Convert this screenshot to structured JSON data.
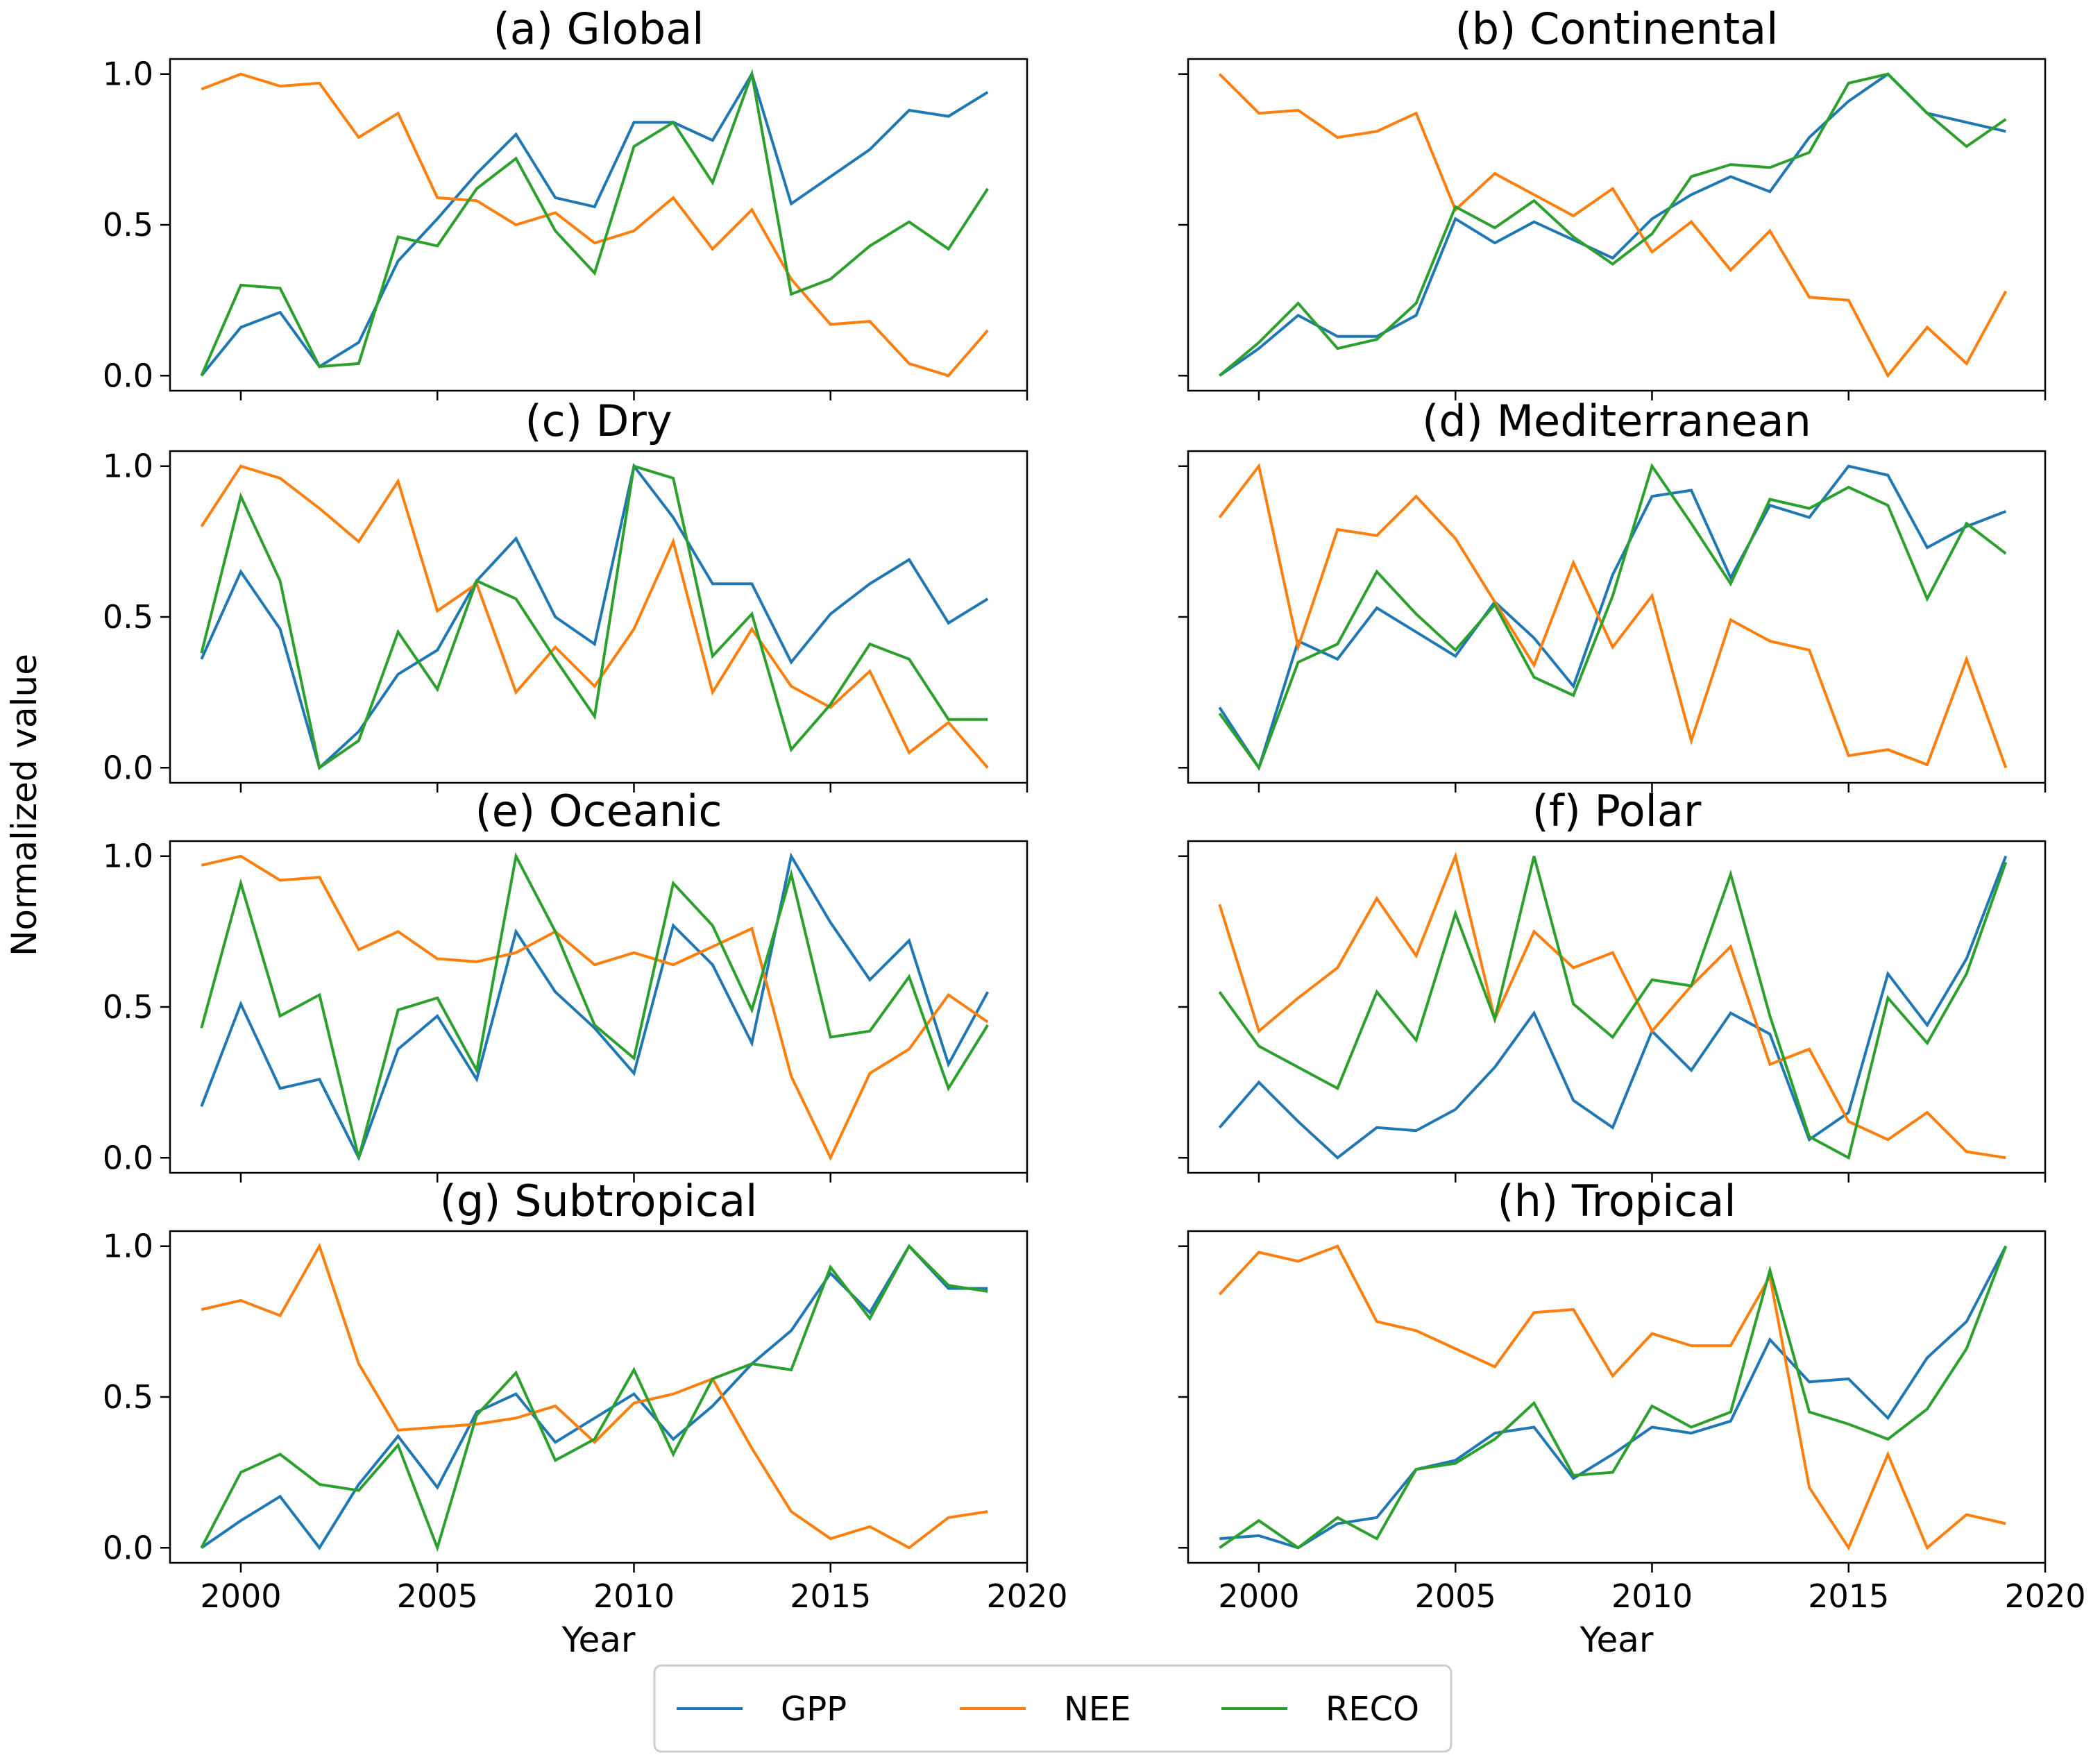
{
  "figure": {
    "ylabel": "Normalized value",
    "xlabel": "Year",
    "xticks": [
      2000,
      2005,
      2010,
      2015,
      2020
    ],
    "yticks": [
      "0.0",
      "0.5",
      "1.0"
    ],
    "xlim": [
      1998.2,
      2020.0
    ],
    "ylim": [
      -0.05,
      1.05
    ]
  },
  "colors": {
    "GPP": "#1f77b4",
    "NEE": "#ff7f0e",
    "RECO": "#2ca02c"
  },
  "legend": [
    {
      "name": "GPP",
      "label": "GPP"
    },
    {
      "name": "NEE",
      "label": "NEE"
    },
    {
      "name": "RECO",
      "label": "RECO"
    }
  ],
  "chart_data": [
    {
      "type": "line",
      "title": "(a) Global",
      "x": [
        1999,
        2000,
        2001,
        2002,
        2003,
        2004,
        2005,
        2006,
        2007,
        2008,
        2009,
        2010,
        2011,
        2012,
        2013,
        2014,
        2015,
        2016,
        2017,
        2018,
        2019
      ],
      "series": [
        {
          "name": "GPP",
          "values": [
            0.0,
            0.16,
            0.21,
            0.03,
            0.11,
            0.38,
            0.52,
            0.67,
            0.8,
            0.59,
            0.56,
            0.84,
            0.84,
            0.78,
            1.0,
            0.57,
            0.66,
            0.75,
            0.88,
            0.86,
            0.94
          ]
        },
        {
          "name": "NEE",
          "values": [
            0.95,
            1.0,
            0.96,
            0.97,
            0.79,
            0.87,
            0.59,
            0.58,
            0.5,
            0.54,
            0.44,
            0.48,
            0.59,
            0.42,
            0.55,
            0.32,
            0.17,
            0.18,
            0.04,
            0.0,
            0.15
          ]
        },
        {
          "name": "RECO",
          "values": [
            0.0,
            0.3,
            0.29,
            0.03,
            0.04,
            0.46,
            0.43,
            0.62,
            0.72,
            0.48,
            0.34,
            0.76,
            0.84,
            0.64,
            1.0,
            0.27,
            0.32,
            0.43,
            0.51,
            0.42,
            0.62
          ]
        }
      ]
    },
    {
      "type": "line",
      "title": "(b) Continental",
      "x": [
        1999,
        2000,
        2001,
        2002,
        2003,
        2004,
        2005,
        2006,
        2007,
        2008,
        2009,
        2010,
        2011,
        2012,
        2013,
        2014,
        2015,
        2016,
        2017,
        2018,
        2019
      ],
      "series": [
        {
          "name": "GPP",
          "values": [
            0.0,
            0.09,
            0.2,
            0.13,
            0.13,
            0.2,
            0.52,
            0.44,
            0.51,
            0.45,
            0.39,
            0.52,
            0.6,
            0.66,
            0.61,
            0.79,
            0.91,
            1.0,
            0.87,
            0.84,
            0.81
          ]
        },
        {
          "name": "NEE",
          "values": [
            1.0,
            0.87,
            0.88,
            0.79,
            0.81,
            0.87,
            0.55,
            0.67,
            0.6,
            0.53,
            0.62,
            0.41,
            0.51,
            0.35,
            0.48,
            0.26,
            0.25,
            0.0,
            0.16,
            0.04,
            0.28
          ]
        },
        {
          "name": "RECO",
          "values": [
            0.0,
            0.11,
            0.24,
            0.09,
            0.12,
            0.24,
            0.56,
            0.49,
            0.58,
            0.46,
            0.37,
            0.47,
            0.66,
            0.7,
            0.69,
            0.74,
            0.97,
            1.0,
            0.87,
            0.76,
            0.85
          ]
        }
      ]
    },
    {
      "type": "line",
      "title": "(c) Dry",
      "x": [
        1999,
        2000,
        2001,
        2002,
        2003,
        2004,
        2005,
        2006,
        2007,
        2008,
        2009,
        2010,
        2011,
        2012,
        2013,
        2014,
        2015,
        2016,
        2017,
        2018,
        2019
      ],
      "series": [
        {
          "name": "GPP",
          "values": [
            0.36,
            0.65,
            0.46,
            0.0,
            0.12,
            0.31,
            0.39,
            0.62,
            0.76,
            0.5,
            0.41,
            1.0,
            0.83,
            0.61,
            0.61,
            0.35,
            0.51,
            0.61,
            0.69,
            0.48,
            0.56
          ]
        },
        {
          "name": "NEE",
          "values": [
            0.8,
            1.0,
            0.96,
            0.86,
            0.75,
            0.95,
            0.52,
            0.61,
            0.25,
            0.4,
            0.27,
            0.46,
            0.75,
            0.25,
            0.46,
            0.27,
            0.2,
            0.32,
            0.05,
            0.15,
            0.0
          ]
        },
        {
          "name": "RECO",
          "values": [
            0.38,
            0.9,
            0.62,
            0.0,
            0.09,
            0.45,
            0.26,
            0.62,
            0.56,
            0.36,
            0.17,
            1.0,
            0.96,
            0.37,
            0.51,
            0.06,
            0.21,
            0.41,
            0.36,
            0.16,
            0.16
          ]
        }
      ]
    },
    {
      "type": "line",
      "title": "(d) Mediterranean",
      "x": [
        1999,
        2000,
        2001,
        2002,
        2003,
        2004,
        2005,
        2006,
        2007,
        2008,
        2009,
        2010,
        2011,
        2012,
        2013,
        2014,
        2015,
        2016,
        2017,
        2018,
        2019
      ],
      "series": [
        {
          "name": "GPP",
          "values": [
            0.2,
            0.0,
            0.42,
            0.36,
            0.53,
            0.45,
            0.37,
            0.55,
            0.43,
            0.27,
            0.64,
            0.9,
            0.92,
            0.63,
            0.87,
            0.83,
            1.0,
            0.97,
            0.73,
            0.8,
            0.85
          ]
        },
        {
          "name": "NEE",
          "values": [
            0.83,
            1.0,
            0.4,
            0.79,
            0.77,
            0.9,
            0.76,
            0.55,
            0.34,
            0.68,
            0.4,
            0.57,
            0.09,
            0.49,
            0.42,
            0.39,
            0.04,
            0.06,
            0.01,
            0.36,
            0.0
          ]
        },
        {
          "name": "RECO",
          "values": [
            0.18,
            0.0,
            0.35,
            0.41,
            0.65,
            0.51,
            0.39,
            0.54,
            0.3,
            0.24,
            0.57,
            1.0,
            0.81,
            0.61,
            0.89,
            0.86,
            0.93,
            0.87,
            0.56,
            0.81,
            0.71
          ]
        }
      ]
    },
    {
      "type": "line",
      "title": "(e) Oceanic",
      "x": [
        1999,
        2000,
        2001,
        2002,
        2003,
        2004,
        2005,
        2006,
        2007,
        2008,
        2009,
        2010,
        2011,
        2012,
        2013,
        2014,
        2015,
        2016,
        2017,
        2018,
        2019
      ],
      "series": [
        {
          "name": "GPP",
          "values": [
            0.17,
            0.51,
            0.23,
            0.26,
            0.0,
            0.36,
            0.47,
            0.26,
            0.75,
            0.55,
            0.43,
            0.28,
            0.77,
            0.64,
            0.38,
            1.0,
            0.78,
            0.59,
            0.72,
            0.31,
            0.55
          ]
        },
        {
          "name": "NEE",
          "values": [
            0.97,
            1.0,
            0.92,
            0.93,
            0.69,
            0.75,
            0.66,
            0.65,
            0.68,
            0.75,
            0.64,
            0.68,
            0.64,
            0.7,
            0.76,
            0.27,
            0.0,
            0.28,
            0.36,
            0.54,
            0.45
          ]
        },
        {
          "name": "RECO",
          "values": [
            0.43,
            0.91,
            0.47,
            0.54,
            0.0,
            0.49,
            0.53,
            0.29,
            1.0,
            0.75,
            0.44,
            0.33,
            0.91,
            0.77,
            0.49,
            0.94,
            0.4,
            0.42,
            0.6,
            0.23,
            0.44
          ]
        }
      ]
    },
    {
      "type": "line",
      "title": "(f) Polar",
      "x": [
        1999,
        2000,
        2001,
        2002,
        2003,
        2004,
        2005,
        2006,
        2007,
        2008,
        2009,
        2010,
        2011,
        2012,
        2013,
        2014,
        2015,
        2016,
        2017,
        2018,
        2019
      ],
      "series": [
        {
          "name": "GPP",
          "values": [
            0.1,
            0.25,
            0.12,
            0.0,
            0.1,
            0.09,
            0.16,
            0.3,
            0.48,
            0.19,
            0.1,
            0.42,
            0.29,
            0.48,
            0.41,
            0.06,
            0.15,
            0.61,
            0.44,
            0.66,
            1.0
          ]
        },
        {
          "name": "NEE",
          "values": [
            0.84,
            0.42,
            0.53,
            0.63,
            0.86,
            0.67,
            1.0,
            0.46,
            0.75,
            0.63,
            0.68,
            0.42,
            0.57,
            0.7,
            0.31,
            0.36,
            0.12,
            0.06,
            0.15,
            0.02,
            0.0
          ]
        },
        {
          "name": "RECO",
          "values": [
            0.55,
            0.37,
            0.3,
            0.23,
            0.55,
            0.39,
            0.81,
            0.46,
            1.0,
            0.51,
            0.4,
            0.59,
            0.57,
            0.94,
            0.47,
            0.07,
            0.0,
            0.53,
            0.38,
            0.61,
            0.98
          ]
        }
      ]
    },
    {
      "type": "line",
      "title": "(g) Subtropical",
      "x": [
        1999,
        2000,
        2001,
        2002,
        2003,
        2004,
        2005,
        2006,
        2007,
        2008,
        2009,
        2010,
        2011,
        2012,
        2013,
        2014,
        2015,
        2016,
        2017,
        2018,
        2019
      ],
      "series": [
        {
          "name": "GPP",
          "values": [
            0.0,
            0.09,
            0.17,
            0.0,
            0.21,
            0.37,
            0.2,
            0.45,
            0.51,
            0.35,
            0.43,
            0.51,
            0.36,
            0.47,
            0.61,
            0.72,
            0.91,
            0.78,
            1.0,
            0.86,
            0.86
          ]
        },
        {
          "name": "NEE",
          "values": [
            0.79,
            0.82,
            0.77,
            1.0,
            0.61,
            0.39,
            0.4,
            0.41,
            0.43,
            0.47,
            0.35,
            0.48,
            0.51,
            0.56,
            0.33,
            0.12,
            0.03,
            0.07,
            0.0,
            0.1,
            0.12
          ]
        },
        {
          "name": "RECO",
          "values": [
            0.0,
            0.25,
            0.31,
            0.21,
            0.19,
            0.34,
            0.0,
            0.44,
            0.58,
            0.29,
            0.36,
            0.59,
            0.31,
            0.56,
            0.61,
            0.59,
            0.93,
            0.76,
            1.0,
            0.87,
            0.85
          ]
        }
      ]
    },
    {
      "type": "line",
      "title": "(h) Tropical",
      "x": [
        1999,
        2000,
        2001,
        2002,
        2003,
        2004,
        2005,
        2006,
        2007,
        2008,
        2009,
        2010,
        2011,
        2012,
        2013,
        2014,
        2015,
        2016,
        2017,
        2018,
        2019
      ],
      "series": [
        {
          "name": "GPP",
          "values": [
            0.03,
            0.04,
            0.0,
            0.08,
            0.1,
            0.26,
            0.29,
            0.38,
            0.4,
            0.23,
            0.31,
            0.4,
            0.38,
            0.42,
            0.69,
            0.55,
            0.56,
            0.43,
            0.63,
            0.75,
            1.0
          ]
        },
        {
          "name": "NEE",
          "values": [
            0.84,
            0.98,
            0.95,
            1.0,
            0.75,
            0.72,
            0.66,
            0.6,
            0.78,
            0.79,
            0.57,
            0.71,
            0.67,
            0.67,
            0.9,
            0.2,
            0.0,
            0.31,
            0.0,
            0.11,
            0.08
          ]
        },
        {
          "name": "RECO",
          "values": [
            0.0,
            0.09,
            0.0,
            0.1,
            0.03,
            0.26,
            0.28,
            0.36,
            0.48,
            0.24,
            0.25,
            0.47,
            0.4,
            0.45,
            0.92,
            0.45,
            0.41,
            0.36,
            0.46,
            0.66,
            1.0
          ]
        }
      ]
    }
  ]
}
